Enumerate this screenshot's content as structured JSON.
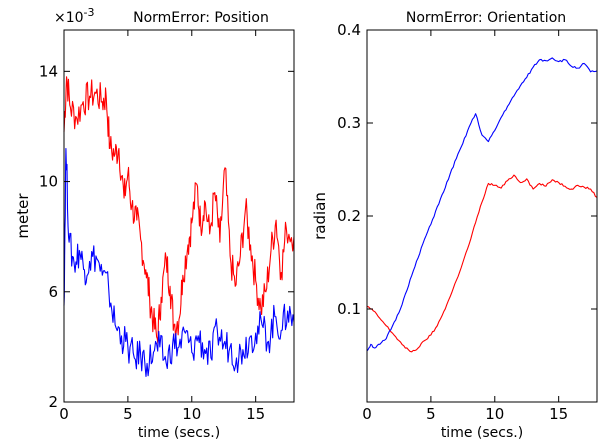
{
  "chart_data": [
    {
      "type": "line",
      "title": "NormError: Position",
      "xlabel": "time (secs.)",
      "ylabel": "meter",
      "y_multiplier": "×10",
      "y_multiplier_exp": "-3",
      "xlim": [
        0,
        18
      ],
      "ylim": [
        0.002,
        0.0155
      ],
      "x_ticks": [
        0,
        5,
        10,
        15
      ],
      "x_tick_labels": [
        "0",
        "5",
        "10",
        "15"
      ],
      "y_ticks": [
        0.002,
        0.006,
        0.01,
        0.014
      ],
      "y_tick_labels": [
        "2",
        "6",
        "10",
        "14"
      ],
      "grid": false,
      "series": [
        {
          "color": "#ff0000",
          "points": [
            [
              0,
              0.0118
            ],
            [
              0.2,
              0.0138
            ],
            [
              0.5,
              0.0127
            ],
            [
              1,
              0.0123
            ],
            [
              1.5,
              0.0129
            ],
            [
              2,
              0.0131
            ],
            [
              2.5,
              0.0132
            ],
            [
              3,
              0.0129
            ],
            [
              3.3,
              0.0131
            ],
            [
              3.6,
              0.0112
            ],
            [
              4,
              0.011
            ],
            [
              4.3,
              0.0112
            ],
            [
              4.7,
              0.0094
            ],
            [
              5,
              0.0103
            ],
            [
              5.3,
              0.0091
            ],
            [
              5.7,
              0.0086
            ],
            [
              6,
              0.0079
            ],
            [
              6.4,
              0.0068
            ],
            [
              6.7,
              0.0058
            ],
            [
              7,
              0.0049
            ],
            [
              7.3,
              0.0043
            ],
            [
              7.6,
              0.0058
            ],
            [
              8,
              0.0072
            ],
            [
              8.3,
              0.0062
            ],
            [
              8.6,
              0.0048
            ],
            [
              9,
              0.005
            ],
            [
              9.3,
              0.0066
            ],
            [
              9.7,
              0.0077
            ],
            [
              10,
              0.0085
            ],
            [
              10.4,
              0.0099
            ],
            [
              10.7,
              0.0084
            ],
            [
              11,
              0.0093
            ],
            [
              11.4,
              0.0081
            ],
            [
              11.8,
              0.0096
            ],
            [
              12.2,
              0.0078
            ],
            [
              12.6,
              0.0105
            ],
            [
              13,
              0.0073
            ],
            [
              13.4,
              0.0062
            ],
            [
              13.8,
              0.0073
            ],
            [
              14.2,
              0.009
            ],
            [
              14.6,
              0.0077
            ],
            [
              15,
              0.0064
            ],
            [
              15.4,
              0.0054
            ],
            [
              15.8,
              0.006
            ],
            [
              16.2,
              0.0075
            ],
            [
              16.6,
              0.0086
            ],
            [
              17,
              0.0067
            ],
            [
              17.4,
              0.0083
            ],
            [
              18,
              0.008
            ]
          ]
        },
        {
          "color": "#0000ff",
          "points": [
            [
              0,
              0.0055
            ],
            [
              0.15,
              0.0112
            ],
            [
              0.4,
              0.0078
            ],
            [
              0.8,
              0.007
            ],
            [
              1.2,
              0.0075
            ],
            [
              1.6,
              0.0068
            ],
            [
              2,
              0.0071
            ],
            [
              2.5,
              0.0073
            ],
            [
              3,
              0.0066
            ],
            [
              3.5,
              0.0061
            ],
            [
              4,
              0.0048
            ],
            [
              4.5,
              0.0044
            ],
            [
              5,
              0.004
            ],
            [
              5.5,
              0.0036
            ],
            [
              6,
              0.0037
            ],
            [
              6.5,
              0.0034
            ],
            [
              7,
              0.0038
            ],
            [
              7.5,
              0.004
            ],
            [
              8,
              0.0034
            ],
            [
              8.5,
              0.0041
            ],
            [
              9,
              0.004
            ],
            [
              9.5,
              0.0045
            ],
            [
              10,
              0.0038
            ],
            [
              10.5,
              0.0044
            ],
            [
              11,
              0.0039
            ],
            [
              11.5,
              0.0036
            ],
            [
              12,
              0.0046
            ],
            [
              12.5,
              0.0041
            ],
            [
              13,
              0.004
            ],
            [
              13.5,
              0.0036
            ],
            [
              14,
              0.0039
            ],
            [
              14.5,
              0.0043
            ],
            [
              15,
              0.0045
            ],
            [
              15.5,
              0.0048
            ],
            [
              16,
              0.0042
            ],
            [
              16.5,
              0.0051
            ],
            [
              17,
              0.0046
            ],
            [
              17.5,
              0.0053
            ],
            [
              18,
              0.0049
            ]
          ]
        }
      ]
    },
    {
      "type": "line",
      "title": "NormError: Orientation",
      "xlabel": "time (secs.)",
      "ylabel": "radian",
      "xlim": [
        0,
        18
      ],
      "ylim": [
        0,
        0.4
      ],
      "x_ticks": [
        0,
        5,
        10,
        15
      ],
      "x_tick_labels": [
        "0",
        "5",
        "10",
        "15"
      ],
      "y_ticks": [
        0.1,
        0.2,
        0.3,
        0.4
      ],
      "y_tick_labels": [
        "0.1",
        "0.2",
        "0.3",
        "0.4"
      ],
      "grid": false,
      "series": [
        {
          "color": "#ff0000",
          "points": [
            [
              0,
              0.103
            ],
            [
              0.5,
              0.098
            ],
            [
              1,
              0.09
            ],
            [
              1.5,
              0.082
            ],
            [
              2,
              0.074
            ],
            [
              2.5,
              0.066
            ],
            [
              3,
              0.058
            ],
            [
              3.5,
              0.054
            ],
            [
              4,
              0.058
            ],
            [
              4.5,
              0.066
            ],
            [
              5,
              0.072
            ],
            [
              5.5,
              0.082
            ],
            [
              6,
              0.097
            ],
            [
              6.5,
              0.113
            ],
            [
              7,
              0.131
            ],
            [
              7.5,
              0.15
            ],
            [
              8,
              0.17
            ],
            [
              8.5,
              0.193
            ],
            [
              9,
              0.215
            ],
            [
              9.5,
              0.235
            ],
            [
              10,
              0.233
            ],
            [
              10.5,
              0.23
            ],
            [
              11,
              0.238
            ],
            [
              11.5,
              0.244
            ],
            [
              12,
              0.236
            ],
            [
              12.5,
              0.24
            ],
            [
              13,
              0.229
            ],
            [
              13.5,
              0.235
            ],
            [
              14,
              0.232
            ],
            [
              14.5,
              0.239
            ],
            [
              15,
              0.236
            ],
            [
              15.5,
              0.232
            ],
            [
              16,
              0.229
            ],
            [
              16.5,
              0.233
            ],
            [
              17,
              0.231
            ],
            [
              17.5,
              0.229
            ],
            [
              18,
              0.22
            ]
          ]
        },
        {
          "color": "#0000ff",
          "points": [
            [
              0,
              0.055
            ],
            [
              0.3,
              0.062
            ],
            [
              0.6,
              0.058
            ],
            [
              1,
              0.062
            ],
            [
              1.5,
              0.068
            ],
            [
              2,
              0.082
            ],
            [
              2.5,
              0.096
            ],
            [
              3,
              0.116
            ],
            [
              3.5,
              0.136
            ],
            [
              4,
              0.155
            ],
            [
              4.5,
              0.175
            ],
            [
              5,
              0.191
            ],
            [
              5.5,
              0.21
            ],
            [
              6,
              0.226
            ],
            [
              6.5,
              0.245
            ],
            [
              7,
              0.262
            ],
            [
              7.5,
              0.278
            ],
            [
              8,
              0.296
            ],
            [
              8.5,
              0.31
            ],
            [
              9,
              0.287
            ],
            [
              9.5,
              0.28
            ],
            [
              10,
              0.292
            ],
            [
              10.5,
              0.306
            ],
            [
              11,
              0.318
            ],
            [
              11.5,
              0.329
            ],
            [
              12,
              0.34
            ],
            [
              12.5,
              0.349
            ],
            [
              13,
              0.36
            ],
            [
              13.5,
              0.368
            ],
            [
              14,
              0.367
            ],
            [
              14.5,
              0.37
            ],
            [
              15,
              0.366
            ],
            [
              15.5,
              0.368
            ],
            [
              16,
              0.361
            ],
            [
              16.5,
              0.359
            ],
            [
              17,
              0.364
            ],
            [
              17.5,
              0.355
            ],
            [
              18,
              0.356
            ]
          ]
        }
      ]
    }
  ]
}
